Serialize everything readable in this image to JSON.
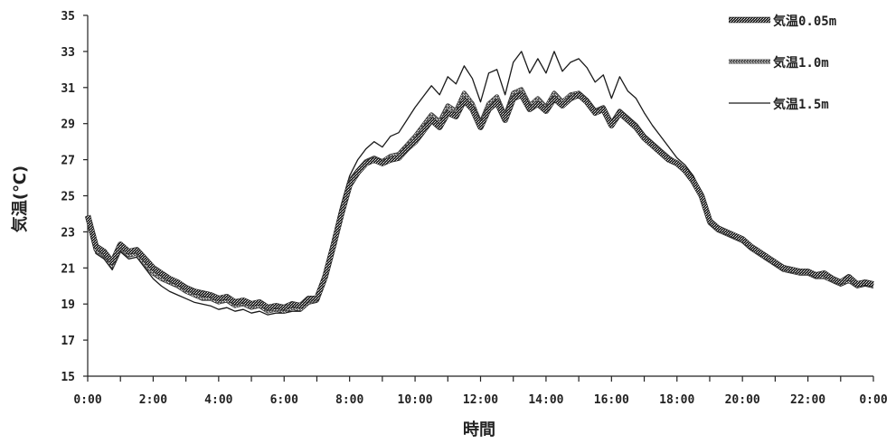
{
  "chart_data": {
    "type": "line",
    "title": "",
    "xlabel": "時間",
    "ylabel": "気温(℃)",
    "ylim": [
      15,
      35
    ],
    "yticks": [
      "15",
      "17",
      "19",
      "21",
      "23",
      "25",
      "27",
      "29",
      "31",
      "33",
      "35"
    ],
    "xlim": [
      0,
      24
    ],
    "xticks": [
      "0:00",
      "2:00",
      "4:00",
      "6:00",
      "8:00",
      "10:00",
      "12:00",
      "14:00",
      "16:00",
      "18:00",
      "20:00",
      "22:00",
      "0:00"
    ],
    "grid": false,
    "legend_position": "top-right",
    "x": [
      0.0,
      0.25,
      0.5,
      0.75,
      1.0,
      1.25,
      1.5,
      1.75,
      2.0,
      2.25,
      2.5,
      2.75,
      3.0,
      3.25,
      3.5,
      3.75,
      4.0,
      4.25,
      4.5,
      4.75,
      5.0,
      5.25,
      5.5,
      5.75,
      6.0,
      6.25,
      6.5,
      6.75,
      7.0,
      7.25,
      7.5,
      7.75,
      8.0,
      8.25,
      8.5,
      8.75,
      9.0,
      9.25,
      9.5,
      9.75,
      10.0,
      10.25,
      10.5,
      10.75,
      11.0,
      11.25,
      11.5,
      11.75,
      12.0,
      12.25,
      12.5,
      12.75,
      13.0,
      13.25,
      13.5,
      13.75,
      14.0,
      14.25,
      14.5,
      14.75,
      15.0,
      15.25,
      15.5,
      15.75,
      16.0,
      16.25,
      16.5,
      16.75,
      17.0,
      17.25,
      17.5,
      17.75,
      18.0,
      18.25,
      18.5,
      18.75,
      19.0,
      19.25,
      19.5,
      19.75,
      20.0,
      20.25,
      20.5,
      20.75,
      21.0,
      21.25,
      21.5,
      21.75,
      22.0,
      22.25,
      22.5,
      22.75,
      23.0,
      23.25,
      23.5,
      23.75,
      24.0
    ],
    "series": [
      {
        "name": "気温0.05m",
        "color": "#2a2a2a",
        "style": "thick-textured",
        "values": [
          23.9,
          22.2,
          21.9,
          21.3,
          22.3,
          21.9,
          22.0,
          21.5,
          21.0,
          20.7,
          20.4,
          20.2,
          19.9,
          19.7,
          19.6,
          19.5,
          19.3,
          19.4,
          19.1,
          19.2,
          19.0,
          19.1,
          18.8,
          18.9,
          18.8,
          19.0,
          18.9,
          19.3,
          19.3,
          20.5,
          22.2,
          24.0,
          25.6,
          26.3,
          26.8,
          27.0,
          26.8,
          27.0,
          27.1,
          27.6,
          28.0,
          28.6,
          29.2,
          28.8,
          29.6,
          29.4,
          30.3,
          29.8,
          28.8,
          29.8,
          30.2,
          29.2,
          30.4,
          30.6,
          29.8,
          30.1,
          29.7,
          30.4,
          30.0,
          30.4,
          30.6,
          30.2,
          29.6,
          29.8,
          28.9,
          29.6,
          29.2,
          28.8,
          28.2,
          27.8,
          27.4,
          27.0,
          26.8,
          26.4,
          25.8,
          25.0,
          23.6,
          23.2,
          23.0,
          22.8,
          22.6,
          22.2,
          21.9,
          21.6,
          21.3,
          21.0,
          20.9,
          20.8,
          20.8,
          20.6,
          20.7,
          20.4,
          20.2,
          20.5,
          20.1,
          20.2,
          20.1
        ]
      },
      {
        "name": "気温1.0m",
        "color": "#4a4a4a",
        "style": "medium-textured",
        "values": [
          23.8,
          22.0,
          21.7,
          21.1,
          22.1,
          21.7,
          21.8,
          21.2,
          20.7,
          20.4,
          20.2,
          20.0,
          19.7,
          19.5,
          19.3,
          19.3,
          19.1,
          19.2,
          18.9,
          19.0,
          18.8,
          18.9,
          18.6,
          18.7,
          18.6,
          18.8,
          18.7,
          19.1,
          19.2,
          20.5,
          22.3,
          24.2,
          25.8,
          26.4,
          26.9,
          27.1,
          26.9,
          27.2,
          27.3,
          27.8,
          28.3,
          28.9,
          29.5,
          29.1,
          30.0,
          29.7,
          30.7,
          30.1,
          29.0,
          30.1,
          30.5,
          29.4,
          30.7,
          30.9,
          30.0,
          30.4,
          29.9,
          30.7,
          30.2,
          30.6,
          30.7,
          30.3,
          29.7,
          29.9,
          29.0,
          29.7,
          29.3,
          28.9,
          28.3,
          27.9,
          27.5,
          27.1,
          26.8,
          26.4,
          25.8,
          25.0,
          23.5,
          23.1,
          22.9,
          22.7,
          22.5,
          22.1,
          21.8,
          21.5,
          21.2,
          20.9,
          20.8,
          20.7,
          20.7,
          20.5,
          20.5,
          20.3,
          20.1,
          20.3,
          20.0,
          20.1,
          20.0
        ]
      },
      {
        "name": "気温1.5m",
        "color": "#1a1a1a",
        "style": "thin",
        "values": [
          23.7,
          21.8,
          21.5,
          20.9,
          21.9,
          21.5,
          21.6,
          21.0,
          20.4,
          20.0,
          19.7,
          19.5,
          19.3,
          19.1,
          19.0,
          18.9,
          18.7,
          18.8,
          18.6,
          18.7,
          18.5,
          18.6,
          18.4,
          18.5,
          18.5,
          18.6,
          18.6,
          19.0,
          19.1,
          20.6,
          22.5,
          24.5,
          26.1,
          27.0,
          27.6,
          28.0,
          27.7,
          28.3,
          28.5,
          29.2,
          29.9,
          30.5,
          31.1,
          30.6,
          31.6,
          31.2,
          32.2,
          31.5,
          30.2,
          31.8,
          32.0,
          30.6,
          32.4,
          33.0,
          31.8,
          32.6,
          31.8,
          33.0,
          31.9,
          32.4,
          32.6,
          32.1,
          31.3,
          31.7,
          30.4,
          31.6,
          30.8,
          30.4,
          29.6,
          28.9,
          28.3,
          27.7,
          27.1,
          26.7,
          26.1,
          25.2,
          23.6,
          23.2,
          22.9,
          22.7,
          22.5,
          22.1,
          21.8,
          21.5,
          21.2,
          20.9,
          20.8,
          20.7,
          20.7,
          20.5,
          20.5,
          20.2,
          20.0,
          20.2,
          19.9,
          20.0,
          19.9
        ]
      }
    ]
  }
}
